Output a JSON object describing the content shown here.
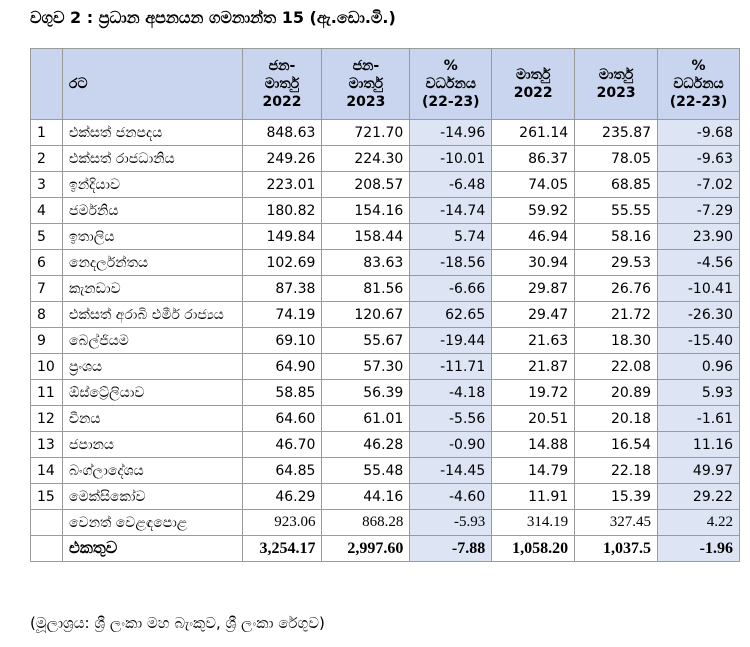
{
  "title": "වගුව 2 : ප්‍රධාන අපනයන ගමනාන්ත 15 (ඇ.ඩො.මි.)",
  "table": {
    "header": [
      [
        "රට"
      ],
      [
        "ජන-",
        "මාර්තු",
        "2022"
      ],
      [
        "ජන-",
        "මාර්තු",
        "2023"
      ],
      [
        "%",
        "වර්ධනය",
        "(22-23)"
      ],
      [
        "මාර්තු",
        "2022"
      ],
      [
        "මාර්තු",
        "2023"
      ],
      [
        "%",
        "වර්ධනය",
        "(22-23)"
      ]
    ],
    "rows": [
      {
        "no": "1",
        "country": "එක්සත් ජනපදය",
        "values": [
          "848.63",
          "721.70",
          "-14.96",
          "261.14",
          "235.87",
          "-9.68"
        ]
      },
      {
        "no": "2",
        "country": "එක්සත් රාජධානිය",
        "values": [
          "249.26",
          "224.30",
          "-10.01",
          "86.37",
          "78.05",
          "-9.63"
        ]
      },
      {
        "no": "3",
        "country": "ඉන්දියාව",
        "values": [
          "223.01",
          "208.57",
          "-6.48",
          "74.05",
          "68.85",
          "-7.02"
        ]
      },
      {
        "no": "4",
        "country": "ජර්මනිය",
        "values": [
          "180.82",
          "154.16",
          "-14.74",
          "59.92",
          "55.55",
          "-7.29"
        ]
      },
      {
        "no": "5",
        "country": "ඉතාලිය",
        "values": [
          "149.84",
          "158.44",
          "5.74",
          "46.94",
          "58.16",
          "23.90"
        ]
      },
      {
        "no": "6",
        "country": "නෙදර්ලන්තය",
        "values": [
          "102.69",
          "83.63",
          "-18.56",
          "30.94",
          "29.53",
          "-4.56"
        ]
      },
      {
        "no": "7",
        "country": "කැනඩාව",
        "values": [
          "87.38",
          "81.56",
          "-6.66",
          "29.87",
          "26.76",
          "-10.41"
        ]
      },
      {
        "no": "8",
        "country": "එක්සත් අරාබි එමීර් රාජ්‍යය",
        "values": [
          "74.19",
          "120.67",
          "62.65",
          "29.47",
          "21.72",
          "-26.30"
        ]
      },
      {
        "no": "9",
        "country": "බෙල්ජියම",
        "values": [
          "69.10",
          "55.67",
          "-19.44",
          "21.63",
          "18.30",
          "-15.40"
        ]
      },
      {
        "no": "10",
        "country": "ප්‍රංශය",
        "values": [
          "64.90",
          "57.30",
          "-11.71",
          "21.87",
          "22.08",
          "0.96"
        ]
      },
      {
        "no": "11",
        "country": "ඕස්ට්‍රේලියාව",
        "values": [
          "58.85",
          "56.39",
          "-4.18",
          "19.72",
          "20.89",
          "5.93"
        ]
      },
      {
        "no": "12",
        "country": "චීනය",
        "values": [
          "64.60",
          "61.01",
          "-5.56",
          "20.51",
          "20.18",
          "-1.61"
        ]
      },
      {
        "no": "13",
        "country": "ජපානය",
        "values": [
          "46.70",
          "46.28",
          "-0.90",
          "14.88",
          "16.54",
          "11.16"
        ]
      },
      {
        "no": "14",
        "country": "බංග්ලාදේශය",
        "values": [
          "64.85",
          "55.48",
          "-14.45",
          "14.79",
          "22.18",
          "49.97"
        ]
      },
      {
        "no": "15",
        "country": "මෙක්සිකෝව",
        "values": [
          "46.29",
          "44.16",
          "-4.60",
          "11.91",
          "15.39",
          "29.22"
        ]
      }
    ],
    "other": {
      "country": "වෙනත් වෙළඳපොළ",
      "values": [
        "923.06",
        "868.28",
        "-5.93",
        "314.19",
        "327.45",
        "4.22"
      ]
    },
    "total": {
      "country": "එකතුව",
      "values": [
        "3,254.17",
        "2,997.60",
        "-7.88",
        "1,058.20",
        "1,037.5",
        "-1.96"
      ]
    }
  },
  "source": "(මූලාශ්‍රය: ශ්‍රී ලංකා මහ බැංකුව, ශ්‍රී ලංකා රේගුව)"
}
